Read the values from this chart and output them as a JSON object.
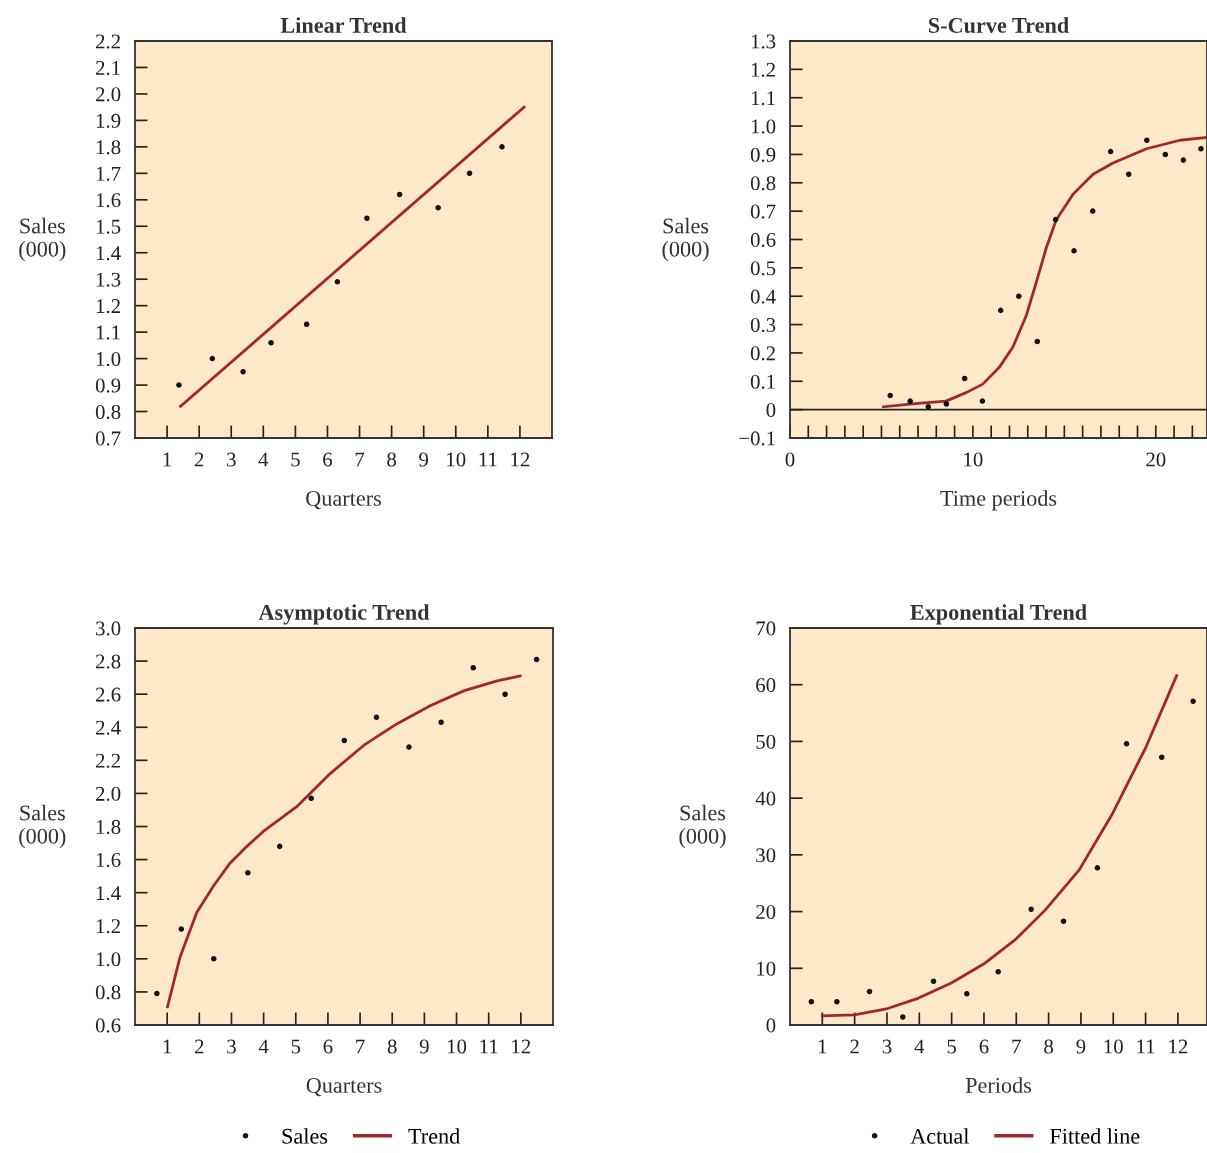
{
  "chart_data": [
    {
      "type": "scatter",
      "title": "Linear Trend",
      "xlabel": "Quarters",
      "ylabel": "Sales\n(000)",
      "xlim": [
        0,
        13
      ],
      "xticks": [
        1,
        2,
        3,
        4,
        5,
        6,
        7,
        8,
        9,
        10,
        11,
        12
      ],
      "ylim": [
        0.7,
        2.2
      ],
      "yticks": [
        0.7,
        0.8,
        0.9,
        {
          "value": 1.0,
          "label": "1.0"
        },
        1.1,
        1.2,
        1.3,
        1.4,
        1.5,
        1.6,
        1.7,
        1.8,
        1.9,
        {
          "value": 2.0,
          "label": "2.0"
        },
        2.1,
        2.2
      ],
      "grid": false,
      "legend": false,
      "series": [
        {
          "color": "#111111",
          "marker": "circle",
          "x": [
            1.37,
            2.41,
            3.37,
            4.24,
            5.35,
            6.31,
            7.23,
            8.25,
            9.45,
            10.43,
            11.44
          ],
          "values": [
            0.9,
            1.0,
            0.95,
            1.06,
            1.13,
            1.29,
            1.53,
            1.62,
            1.57,
            1.7,
            1.8
          ]
        },
        {
          "type": "line",
          "color": "#a3262a",
          "line_style": "solid",
          "x": [
            1.42,
            12.13
          ],
          "values": [
            0.82,
            1.95
          ]
        }
      ]
    },
    {
      "type": "scatter",
      "title": "S-Curve Trend",
      "xlabel": "Time periods",
      "ylabel": "Sales\n(000)",
      "xlim": [
        0,
        22.8
      ],
      "xticks": [
        0,
        {
          "value": 1,
          "label": null
        },
        {
          "value": 2,
          "label": null
        },
        {
          "value": 3,
          "label": null
        },
        {
          "value": 4,
          "label": null
        },
        {
          "value": 5,
          "label": null
        },
        {
          "value": 6,
          "label": null
        },
        {
          "value": 7,
          "label": null
        },
        {
          "value": 8,
          "label": null
        },
        {
          "value": 9,
          "label": null
        },
        10,
        {
          "value": 11,
          "label": null
        },
        {
          "value": 12,
          "label": null
        },
        {
          "value": 13,
          "label": null
        },
        {
          "value": 14,
          "label": null
        },
        {
          "value": 15,
          "label": null
        },
        {
          "value": 16,
          "label": null
        },
        {
          "value": 17,
          "label": null
        },
        {
          "value": 18,
          "label": null
        },
        {
          "value": 19,
          "label": null
        },
        20,
        {
          "value": 21,
          "label": null
        },
        {
          "value": 22,
          "label": null
        }
      ],
      "ylim": [
        -0.1,
        1.3
      ],
      "yticks": [
        {
          "value": -0.1,
          "label": "−0.1"
        },
        0,
        0.1,
        0.2,
        0.3,
        0.4,
        0.5,
        0.6,
        0.7,
        0.8,
        0.9,
        {
          "value": 1.0,
          "label": "1.0"
        },
        1.1,
        1.2,
        1.3
      ],
      "grid": false,
      "legend": false,
      "ref_lines": [
        {
          "axis": "y",
          "value": 0,
          "color": "#222222",
          "line_style": "solid"
        }
      ],
      "series": [
        {
          "color": "#111111",
          "marker": "circle",
          "x": [
            5.48,
            6.57,
            7.56,
            8.55,
            9.55,
            10.52,
            11.52,
            12.51,
            13.52,
            14.52,
            15.53,
            16.55,
            17.53,
            18.52,
            19.51,
            20.52,
            21.51,
            22.47
          ],
          "values": [
            0.05,
            0.03,
            0.01,
            0.02,
            0.11,
            0.03,
            0.35,
            0.4,
            0.24,
            0.67,
            0.56,
            0.7,
            0.91,
            0.83,
            0.95,
            0.9,
            0.88,
            0.92
          ]
        },
        {
          "type": "line",
          "color": "#a3262a",
          "line_style": "solid",
          "x": [
            5.11,
            6.7,
            8.53,
            9.63,
            10.54,
            11.45,
            12.18,
            12.91,
            13.47,
            14.01,
            14.56,
            15.48,
            16.57,
            17.66,
            19.49,
            21.32,
            22.78
          ],
          "values": [
            0.01,
            0.02,
            0.03,
            0.06,
            0.09,
            0.15,
            0.22,
            0.33,
            0.45,
            0.57,
            0.67,
            0.76,
            0.83,
            0.87,
            0.92,
            0.95,
            0.96
          ]
        }
      ]
    },
    {
      "type": "scatter",
      "title": "Asymptotic Trend",
      "xlabel": "Quarters",
      "ylabel": "Sales\n(000)",
      "xlim": [
        0,
        13
      ],
      "xticks": [
        1,
        2,
        3,
        4,
        5,
        6,
        7,
        8,
        9,
        10,
        11,
        12
      ],
      "ylim": [
        0.6,
        3.0
      ],
      "yticks": [
        0.6,
        0.8,
        {
          "value": 1.0,
          "label": "1.0"
        },
        1.2,
        1.4,
        1.6,
        1.8,
        {
          "value": 2.0,
          "label": "2.0"
        },
        2.2,
        2.4,
        2.6,
        2.8,
        {
          "value": 3.0,
          "label": "3.0"
        }
      ],
      "grid": false,
      "legend": "bottom",
      "series": [
        {
          "name": "Sales",
          "color": "#111111",
          "marker": "circle",
          "x": [
            0.68,
            1.44,
            2.45,
            3.51,
            4.5,
            5.48,
            6.51,
            7.51,
            8.52,
            9.52,
            10.52,
            11.51,
            12.49
          ],
          "values": [
            0.79,
            1.18,
            1.0,
            1.52,
            1.68,
            1.97,
            2.32,
            2.46,
            2.28,
            2.43,
            2.76,
            2.6,
            2.81
          ]
        },
        {
          "type": "line",
          "name": "Trend",
          "color": "#a3262a",
          "line_style": "solid",
          "x": [
            1.01,
            1.4,
            1.92,
            2.44,
            2.96,
            3.48,
            3.99,
            5.03,
            6.07,
            7.11,
            8.14,
            9.18,
            10.22,
            11.26,
            11.98
          ],
          "values": [
            0.71,
            1.01,
            1.28,
            1.44,
            1.58,
            1.68,
            1.77,
            1.92,
            2.12,
            2.29,
            2.42,
            2.53,
            2.62,
            2.68,
            2.71
          ]
        }
      ]
    },
    {
      "type": "scatter",
      "title": "Exponential Trend",
      "xlabel": "Periods",
      "ylabel": "Sales\n(000)",
      "xlim": [
        0,
        12.9
      ],
      "xticks": [
        1,
        2,
        3,
        4,
        5,
        6,
        7,
        8,
        9,
        10,
        11,
        12
      ],
      "ylim": [
        0,
        70
      ],
      "yticks": [
        0,
        10,
        20,
        30,
        40,
        50,
        60,
        70
      ],
      "grid": false,
      "legend": "bottom",
      "series": [
        {
          "name": "Actual",
          "color": "#111111",
          "marker": "circle",
          "x": [
            0.66,
            1.45,
            2.46,
            3.49,
            4.44,
            5.47,
            6.44,
            7.46,
            8.46,
            9.51,
            10.41,
            11.5,
            12.47
          ],
          "values": [
            4.1,
            4.1,
            5.9,
            1.4,
            7.7,
            5.5,
            9.4,
            20.4,
            18.3,
            27.7,
            49.6,
            47.2,
            57.1
          ]
        },
        {
          "type": "line",
          "name": "Fitted line",
          "color": "#a3262a",
          "line_style": "solid",
          "x": [
            1.0,
            1.99,
            3.02,
            3.96,
            4.99,
            6.03,
            6.96,
            7.9,
            8.94,
            9.98,
            11.02,
            11.96
          ],
          "values": [
            1.6,
            1.8,
            2.9,
            4.7,
            7.4,
            10.9,
            15.0,
            20.3,
            27.3,
            37.3,
            49.1,
            61.6
          ]
        }
      ]
    }
  ]
}
